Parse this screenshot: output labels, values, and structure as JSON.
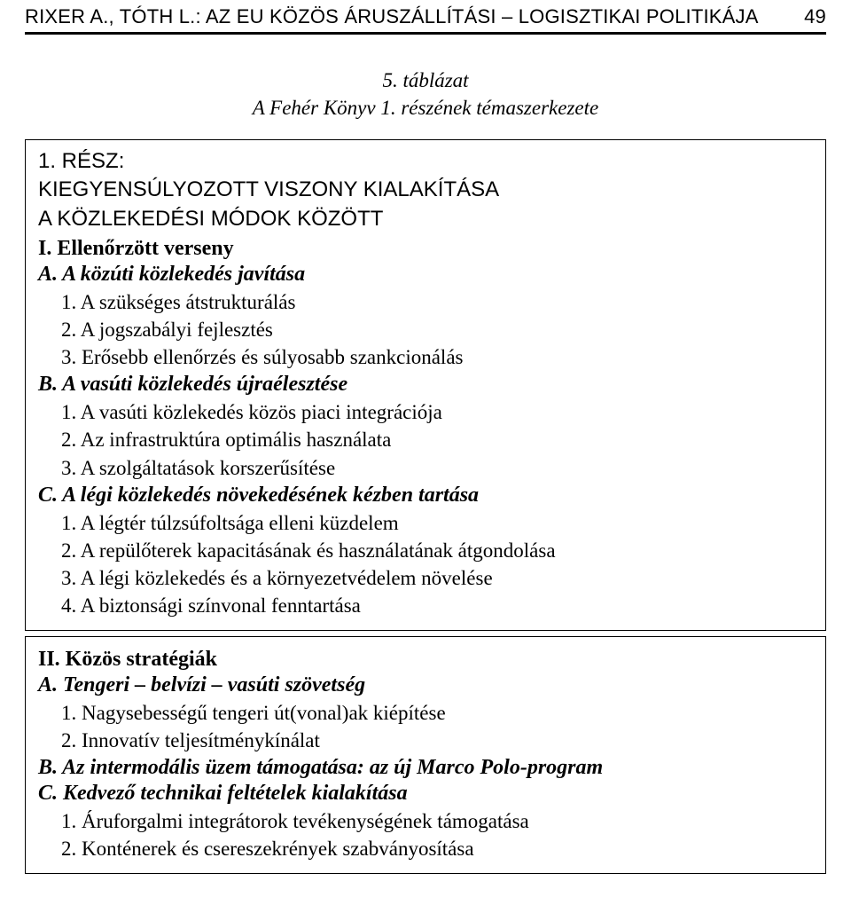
{
  "header": {
    "running": "RIXER A., TÓTH L.: AZ EU KÖZÖS ÁRUSZÁLLÍTÁSI – LOGISZTIKAI POLITIKÁJA",
    "page": "49"
  },
  "caption": {
    "line1": "5. táblázat",
    "line2": "A Fehér Könyv 1. részének témaszerkezete"
  },
  "box1": {
    "part": {
      "l1": "1. RÉSZ:",
      "l2": "KIEGYENSÚLYOZOTT VISZONY KIALAKÍTÁSA",
      "l3": "A KÖZLEKEDÉSI MÓDOK KÖZÖTT"
    },
    "secI": "I. Ellenőrzött verseny",
    "A": {
      "title": "A. A közúti közlekedés javítása",
      "i1": "1. A szükséges átstrukturálás",
      "i2": "2. A jogszabályi fejlesztés",
      "i3": "3. Erősebb ellenőrzés és súlyosabb szankcionálás"
    },
    "B": {
      "title": "B. A vasúti közlekedés újraélesztése",
      "i1": "1. A vasúti közlekedés közös piaci integrációja",
      "i2": "2. Az infrastruktúra optimális használata",
      "i3": "3. A szolgáltatások korszerűsítése"
    },
    "C": {
      "title": "C. A légi közlekedés növekedésének kézben tartása",
      "i1": "1. A légtér túlzsúfoltsága elleni küzdelem",
      "i2": "2. A repülőterek kapacitásának és használatának átgondolása",
      "i3": "3. A légi közlekedés és a környezetvédelem növelése",
      "i4": "4. A biztonsági színvonal fenntartása"
    }
  },
  "box2": {
    "secII": "II. Közös stratégiák",
    "A": {
      "title": "A. Tengeri – belvízi – vasúti szövetség",
      "i1": "1. Nagysebességű tengeri út(vonal)ak kiépítése",
      "i2": "2. Innovatív teljesítménykínálat"
    },
    "B": {
      "title": "B. Az intermodális üzem támogatása: az új Marco Polo-program"
    },
    "C": {
      "title": "C. Kedvező technikai feltételek kialakítása",
      "i1": "1. Áruforgalmi integrátorok tevékenységének támogatása",
      "i2": "2. Konténerek és csereszekrények szabványosítása"
    }
  }
}
